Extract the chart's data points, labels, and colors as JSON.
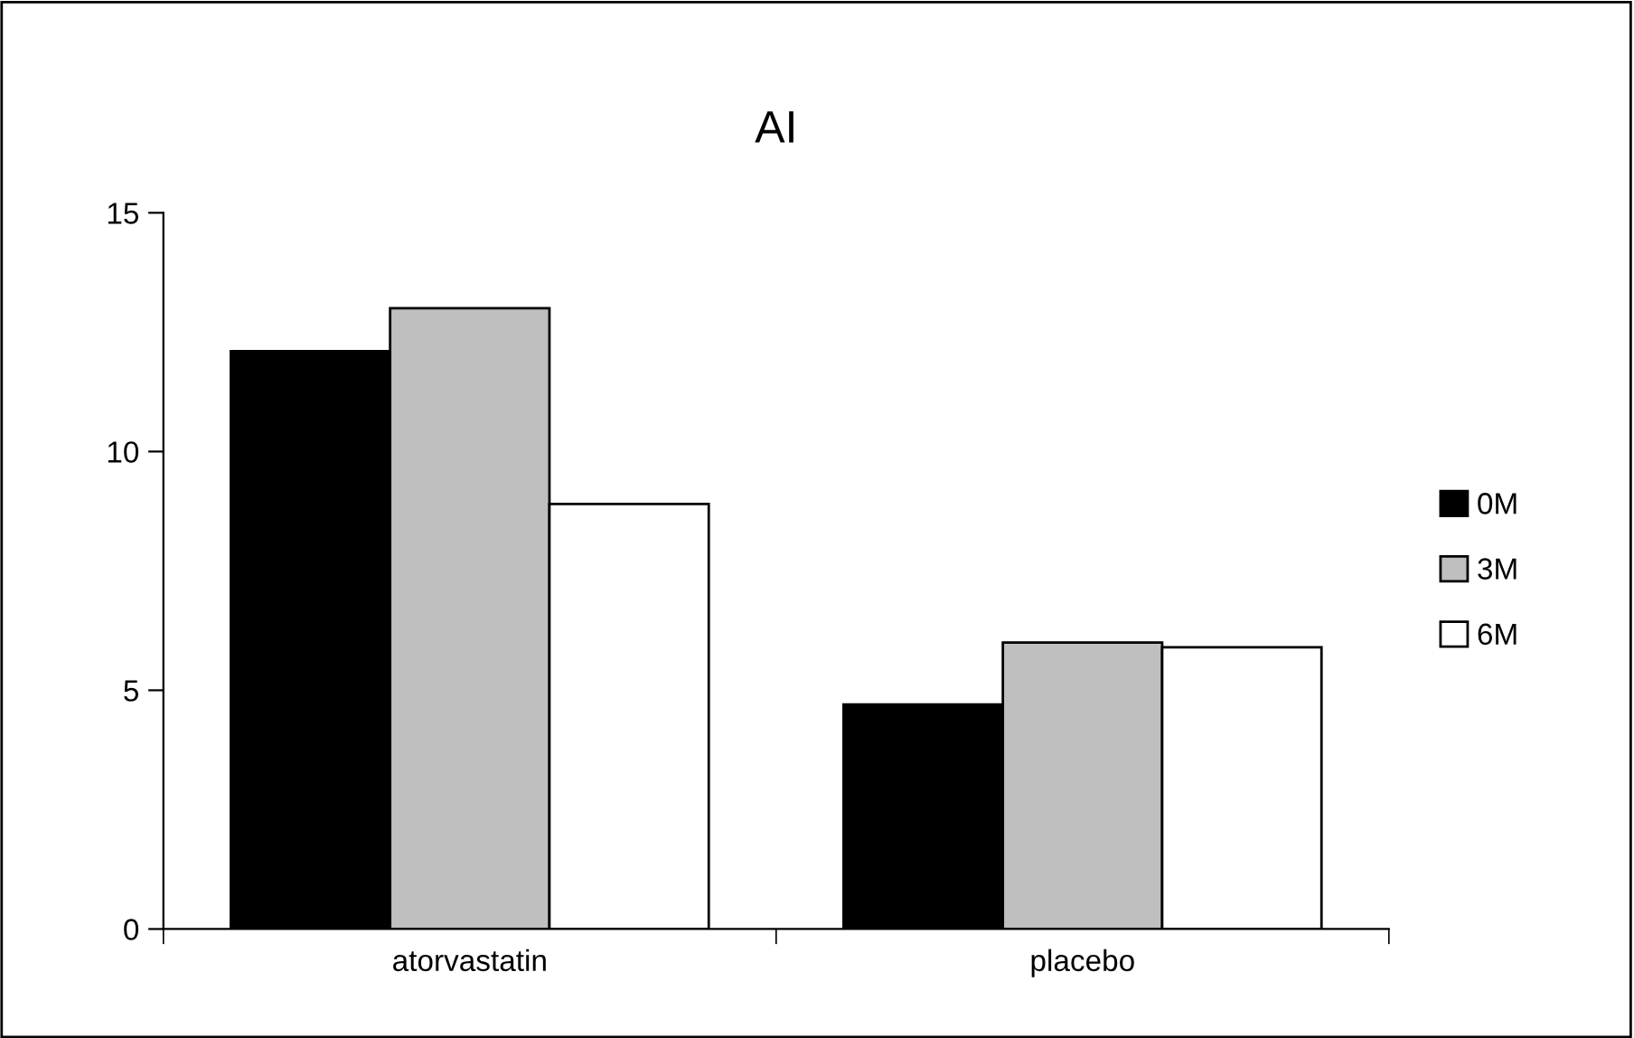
{
  "chart_data": {
    "type": "bar",
    "title": "AI",
    "categories": [
      "atorvastatin",
      "placebo"
    ],
    "series": [
      {
        "name": "0M",
        "color": "#000000",
        "values": [
          12.1,
          4.7
        ]
      },
      {
        "name": "3M",
        "color": "#bfbfbf",
        "values": [
          13.0,
          6.0
        ]
      },
      {
        "name": "6M",
        "color": "#ffffff",
        "values": [
          8.9,
          5.9
        ]
      }
    ],
    "ylim": [
      0,
      15
    ],
    "yticks": [
      0,
      5,
      10,
      15
    ],
    "grid": false,
    "legend": "right"
  }
}
